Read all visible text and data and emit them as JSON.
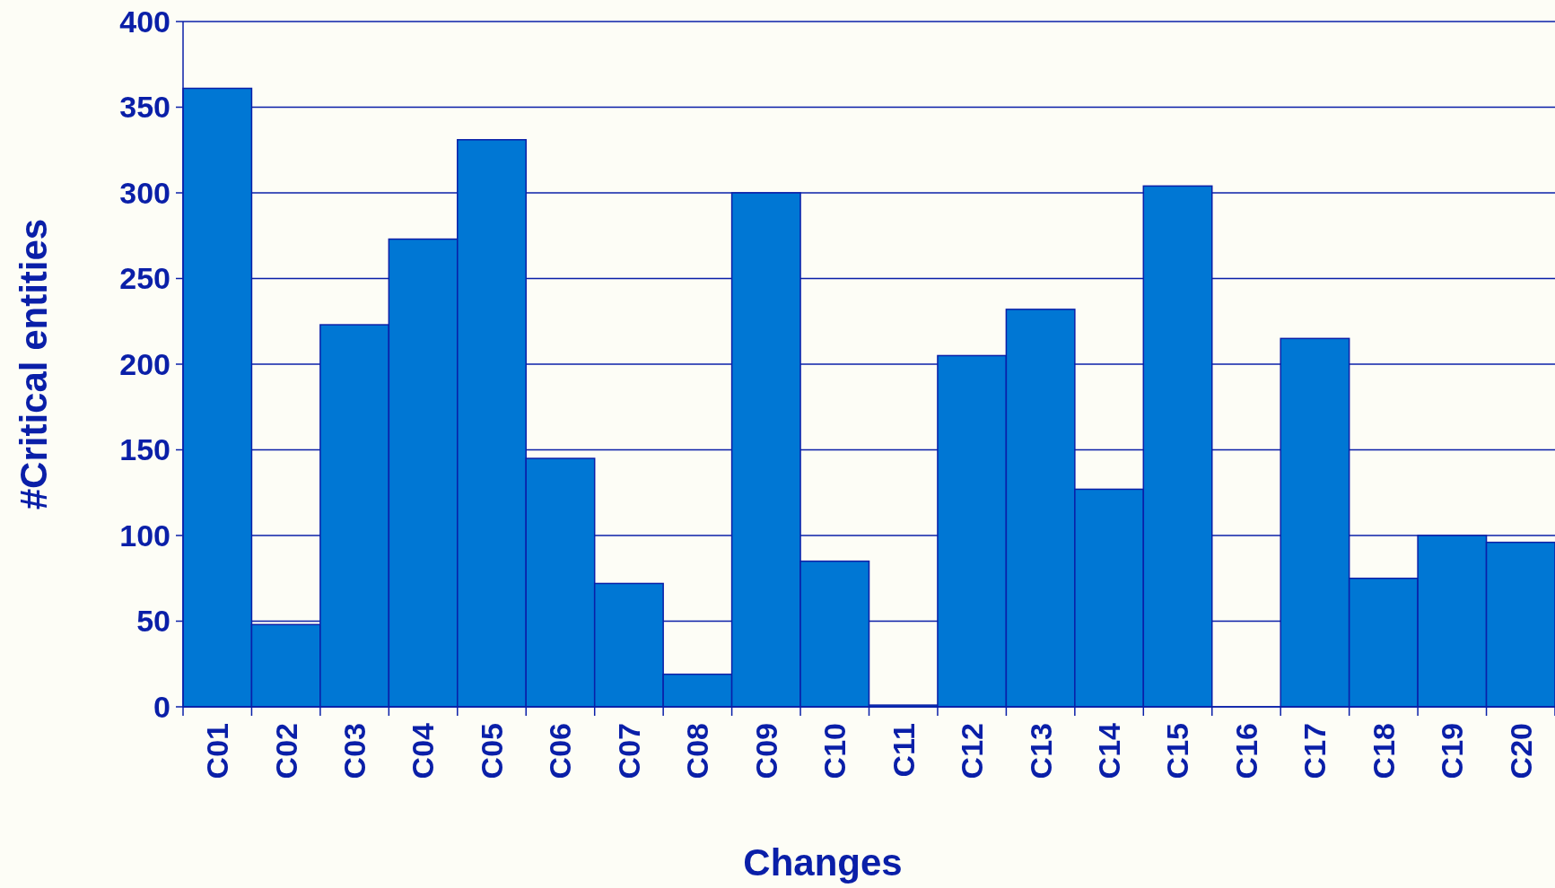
{
  "chart_data": {
    "type": "bar",
    "xlabel": "Changes",
    "ylabel": "#Critical entities",
    "categories": [
      "C01",
      "C02",
      "C03",
      "C04",
      "C05",
      "C06",
      "C07",
      "C08",
      "C09",
      "C10",
      "C11",
      "C12",
      "C13",
      "C14",
      "C15",
      "C16",
      "C17",
      "C18",
      "C19",
      "C20"
    ],
    "values": [
      361,
      48,
      223,
      273,
      331,
      145,
      72,
      19,
      300,
      85,
      1,
      205,
      232,
      127,
      304,
      0,
      215,
      75,
      100,
      96
    ],
    "color": "#0077d4",
    "ylim": [
      0,
      400
    ],
    "yticks": [
      0,
      50,
      100,
      150,
      200,
      250,
      300,
      350,
      400
    ],
    "grid": "y"
  }
}
